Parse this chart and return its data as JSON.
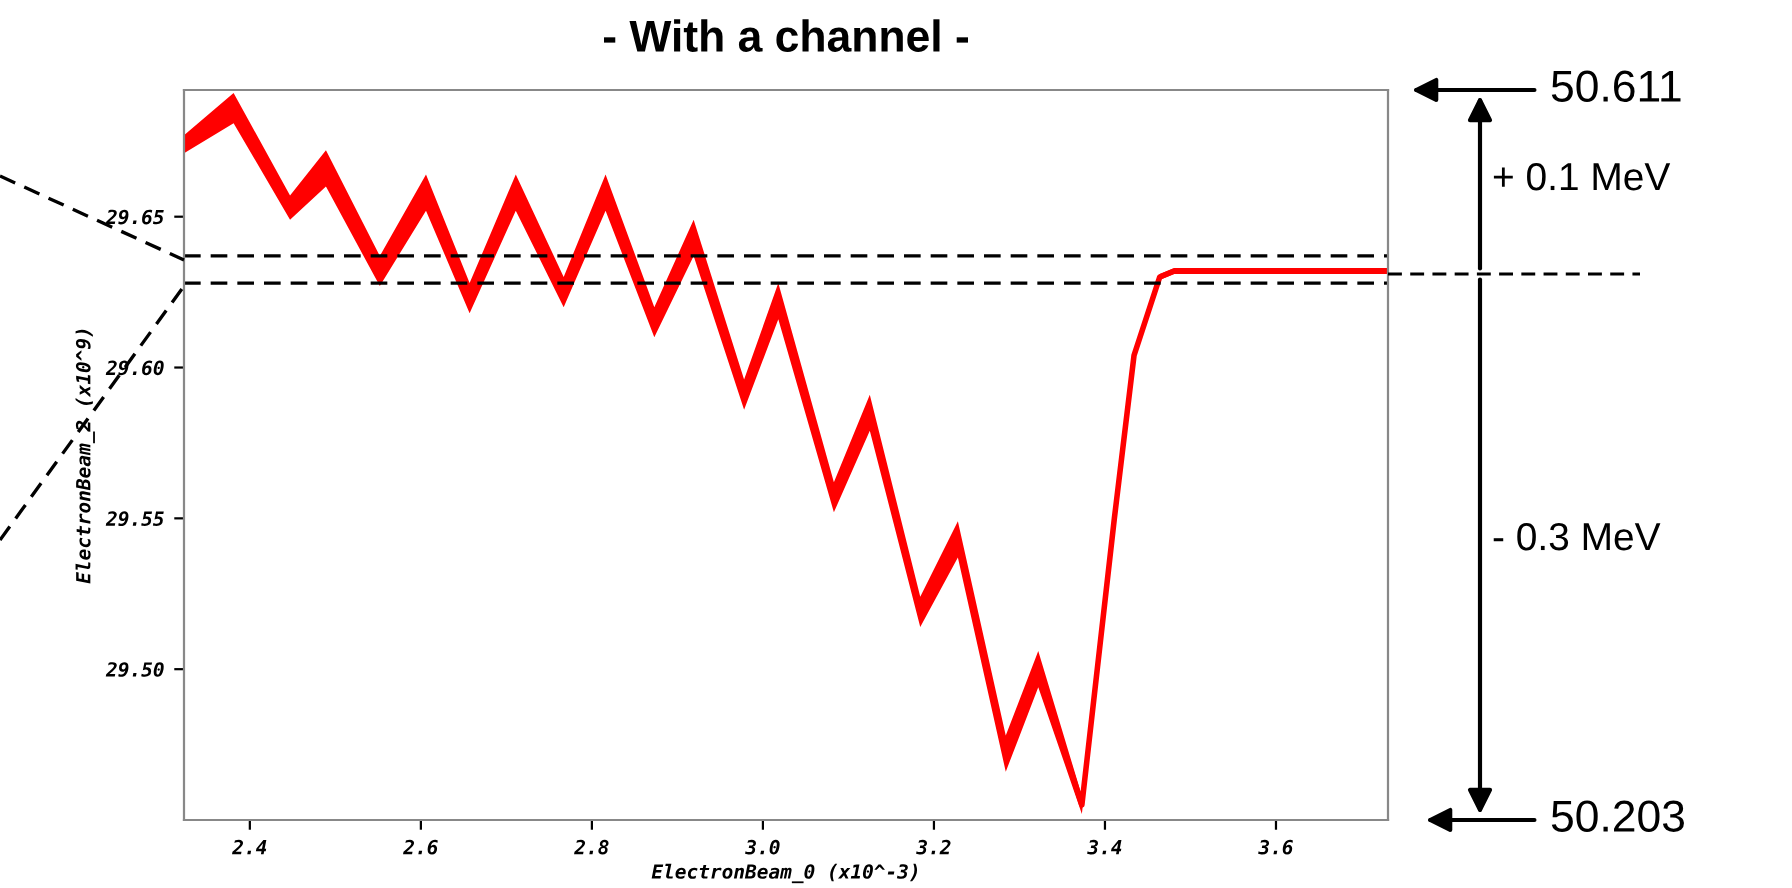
{
  "chart_data": {
    "type": "line",
    "title": "- With a channel -",
    "xlabel": "ElectronBeam_0 (x10^-3)",
    "ylabel": "ElectronBeam_2 (x10^9)",
    "xlim": [
      2.323,
      3.731
    ],
    "ylim": [
      29.45,
      29.692
    ],
    "xticks": [
      2.4,
      2.6,
      2.8,
      {
        "value": 3.0,
        "label": "3.0"
      },
      3.2,
      3.4,
      3.6
    ],
    "yticks": [
      {
        "value": 29.5,
        "label": "29.50"
      },
      {
        "value": 29.55,
        "label": "29.55"
      },
      {
        "value": 29.6,
        "label": "29.60"
      },
      {
        "value": 29.65,
        "label": "29.65"
      }
    ],
    "grid": false,
    "legend": false,
    "line_style": "solid",
    "marker": "none",
    "ref_lines": [
      {
        "axis": "y",
        "value": 29.637,
        "color": "#000000",
        "line_style": "dashed"
      },
      {
        "axis": "y",
        "value": 29.628,
        "color": "#000000",
        "line_style": "dashed"
      }
    ],
    "annotations": [
      "50.611",
      "+ 0.1 MeV",
      "- 0.3 MeV",
      "50.203"
    ],
    "series": [
      {
        "color": "#ff0000",
        "x": [
          2.323,
          2.381,
          2.447,
          2.489,
          2.552,
          2.606,
          2.657,
          2.711,
          2.767,
          2.816,
          2.873,
          2.919,
          2.978,
          3.018,
          3.083,
          3.125,
          3.184,
          3.228,
          3.284,
          3.322,
          3.373,
          3.411,
          3.434,
          3.464,
          3.481,
          3.731
        ],
        "values": [
          29.674,
          29.687,
          29.653,
          29.666,
          29.632,
          29.658,
          29.623,
          29.658,
          29.625,
          29.658,
          29.615,
          29.643,
          29.591,
          29.622,
          29.557,
          29.585,
          29.519,
          29.543,
          29.472,
          29.5,
          29.455,
          29.55,
          29.604,
          29.63,
          29.632,
          29.632
        ],
        "lower": [
          29.671,
          29.681,
          29.649,
          29.66,
          29.627,
          29.652,
          29.618,
          29.652,
          29.62,
          29.652,
          29.61,
          29.637,
          29.586,
          29.616,
          29.552,
          29.579,
          29.514,
          29.537,
          29.466,
          29.494,
          29.452,
          29.547,
          29.602,
          29.629,
          29.631,
          29.631
        ],
        "upper": [
          29.677,
          29.691,
          29.657,
          29.672,
          29.637,
          29.664,
          29.628,
          29.664,
          29.63,
          29.664,
          29.62,
          29.649,
          29.596,
          29.628,
          29.562,
          29.591,
          29.524,
          29.549,
          29.478,
          29.506,
          29.458,
          29.553,
          29.606,
          29.631,
          29.633,
          29.633
        ]
      }
    ]
  }
}
